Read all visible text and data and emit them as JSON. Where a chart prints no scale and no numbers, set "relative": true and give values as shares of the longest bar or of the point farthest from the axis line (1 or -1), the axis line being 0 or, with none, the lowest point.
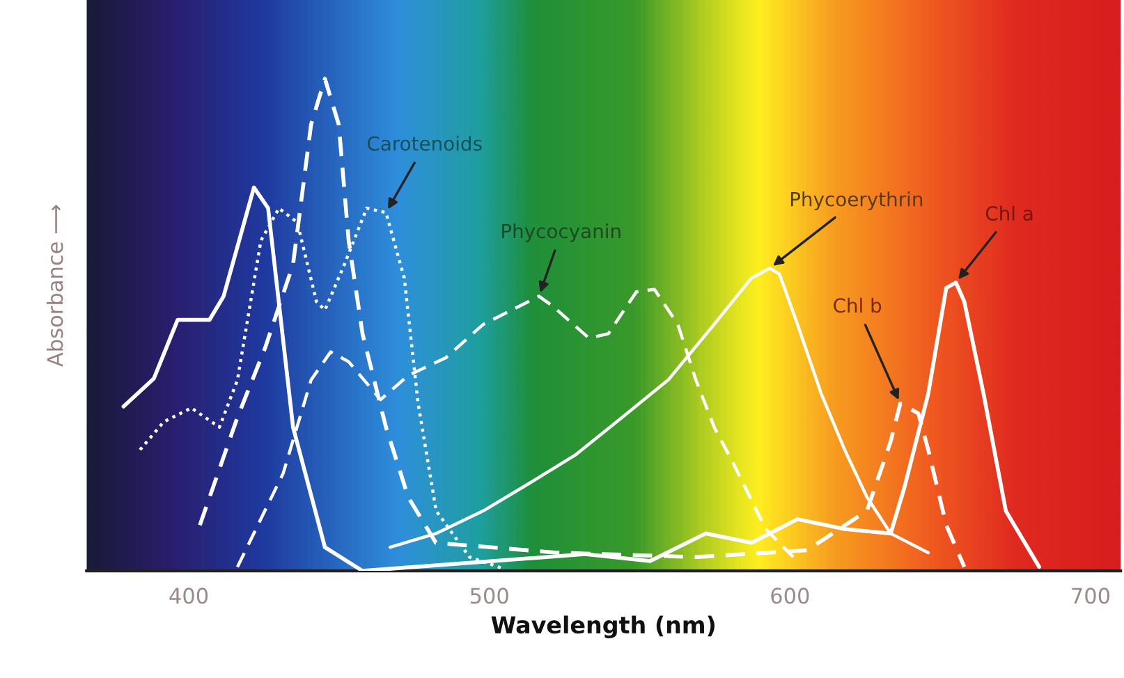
{
  "chart_data": {
    "type": "line",
    "relative": true,
    "xlabel": "Wavelength (nm)",
    "ylabel": "Absorbance ⟶",
    "xlim": [
      366,
      710
    ],
    "xticks": [
      400,
      500,
      600,
      700
    ],
    "grid": false,
    "legend": false,
    "marker": "none",
    "series": [
      {
        "color": "#ffffff",
        "line_style": "solid",
        "x": [
          378.3,
          388.4,
          396.3,
          406.9,
          411.6,
          421.7,
          426.4,
          434.7,
          445.3,
          457.8,
          531.8,
          553.5,
          572,
          587.2,
          602.5,
          618.2,
          633.5,
          638.1,
          646,
          652,
          655.2,
          658,
          664.4,
          671.8,
          682.9
        ],
        "values": [
          0.334,
          0.391,
          0.51,
          0.51,
          0.558,
          0.779,
          0.737,
          0.292,
          0.048,
          0,
          0.034,
          0.02,
          0.076,
          0.057,
          0.105,
          0.085,
          0.076,
          0.17,
          0.36,
          0.575,
          0.586,
          0.547,
          0.36,
          0.122,
          0.008
        ]
      },
      {
        "color": "#ffffff",
        "line_style": "dashed",
        "x": [
          403.7,
          416.2,
          425.4,
          434.7,
          440.7,
          445.3,
          449.9,
          453.2,
          457.8,
          465.6,
          473,
          482.2,
          522.5,
          568.7,
          605.7,
          625.6,
          633.5,
          636.7,
          642.7,
          646,
          652,
          658
        ],
        "values": [
          0.093,
          0.312,
          0.453,
          0.623,
          0.907,
          1,
          0.907,
          0.671,
          0.482,
          0.292,
          0.15,
          0.057,
          0.037,
          0.028,
          0.042,
          0.122,
          0.263,
          0.34,
          0.32,
          0.246,
          0.093,
          0.008
        ]
      },
      {
        "color": "#ffffff",
        "line_style": "dotted",
        "x": [
          383.8,
          391.7,
          400.9,
          410.2,
          416.2,
          424,
          430,
          436.1,
          442.5,
          445.3,
          451.8,
          459.2,
          465.6,
          471.7,
          476.3,
          482.3,
          493.4,
          504
        ],
        "values": [
          0.246,
          0.303,
          0.331,
          0.292,
          0.388,
          0.671,
          0.737,
          0.708,
          0.547,
          0.53,
          0.623,
          0.737,
          0.728,
          0.595,
          0.34,
          0.122,
          0.028,
          0.006
        ]
      },
      {
        "color": "#ffffff",
        "line_style": "dashed",
        "x": [
          416.2,
          431.4,
          440.7,
          447.2,
          453.2,
          463.8,
          473,
          485.5,
          498,
          516.5,
          521.1,
          533.1,
          539.6,
          548.9,
          554.9,
          562.7,
          568.7,
          574.8,
          581.2,
          591.9,
          601.1
        ],
        "values": [
          0.008,
          0.198,
          0.388,
          0.445,
          0.425,
          0.348,
          0.397,
          0.433,
          0.501,
          0.558,
          0.538,
          0.473,
          0.482,
          0.567,
          0.572,
          0.501,
          0.388,
          0.292,
          0.218,
          0.085,
          0.028
        ]
      },
      {
        "color": "#ffffff",
        "line_style": "solid",
        "x": [
          467,
          482.3,
          498,
          513.3,
          528.5,
          544.2,
          559.5,
          574.8,
          587.2,
          593.3,
          596.5,
          602.5,
          610.4,
          618.2,
          625.6,
          633.5,
          646
        ],
        "values": [
          0.048,
          0.076,
          0.122,
          0.178,
          0.235,
          0.312,
          0.388,
          0.501,
          0.595,
          0.615,
          0.603,
          0.501,
          0.36,
          0.246,
          0.15,
          0.076,
          0.037
        ]
      }
    ],
    "annotations": [
      {
        "text": "Carotenoids",
        "x": 465.6,
        "y": 0.728
      },
      {
        "text": "Phycocyanin",
        "x": 516.5,
        "y": 0.558
      },
      {
        "text": "Phycoerythrin",
        "x": 593.3,
        "y": 0.615
      },
      {
        "text": "Chl a",
        "x": 655.2,
        "y": 0.586
      },
      {
        "text": "Chl b",
        "x": 636.7,
        "y": 0.34
      }
    ]
  }
}
